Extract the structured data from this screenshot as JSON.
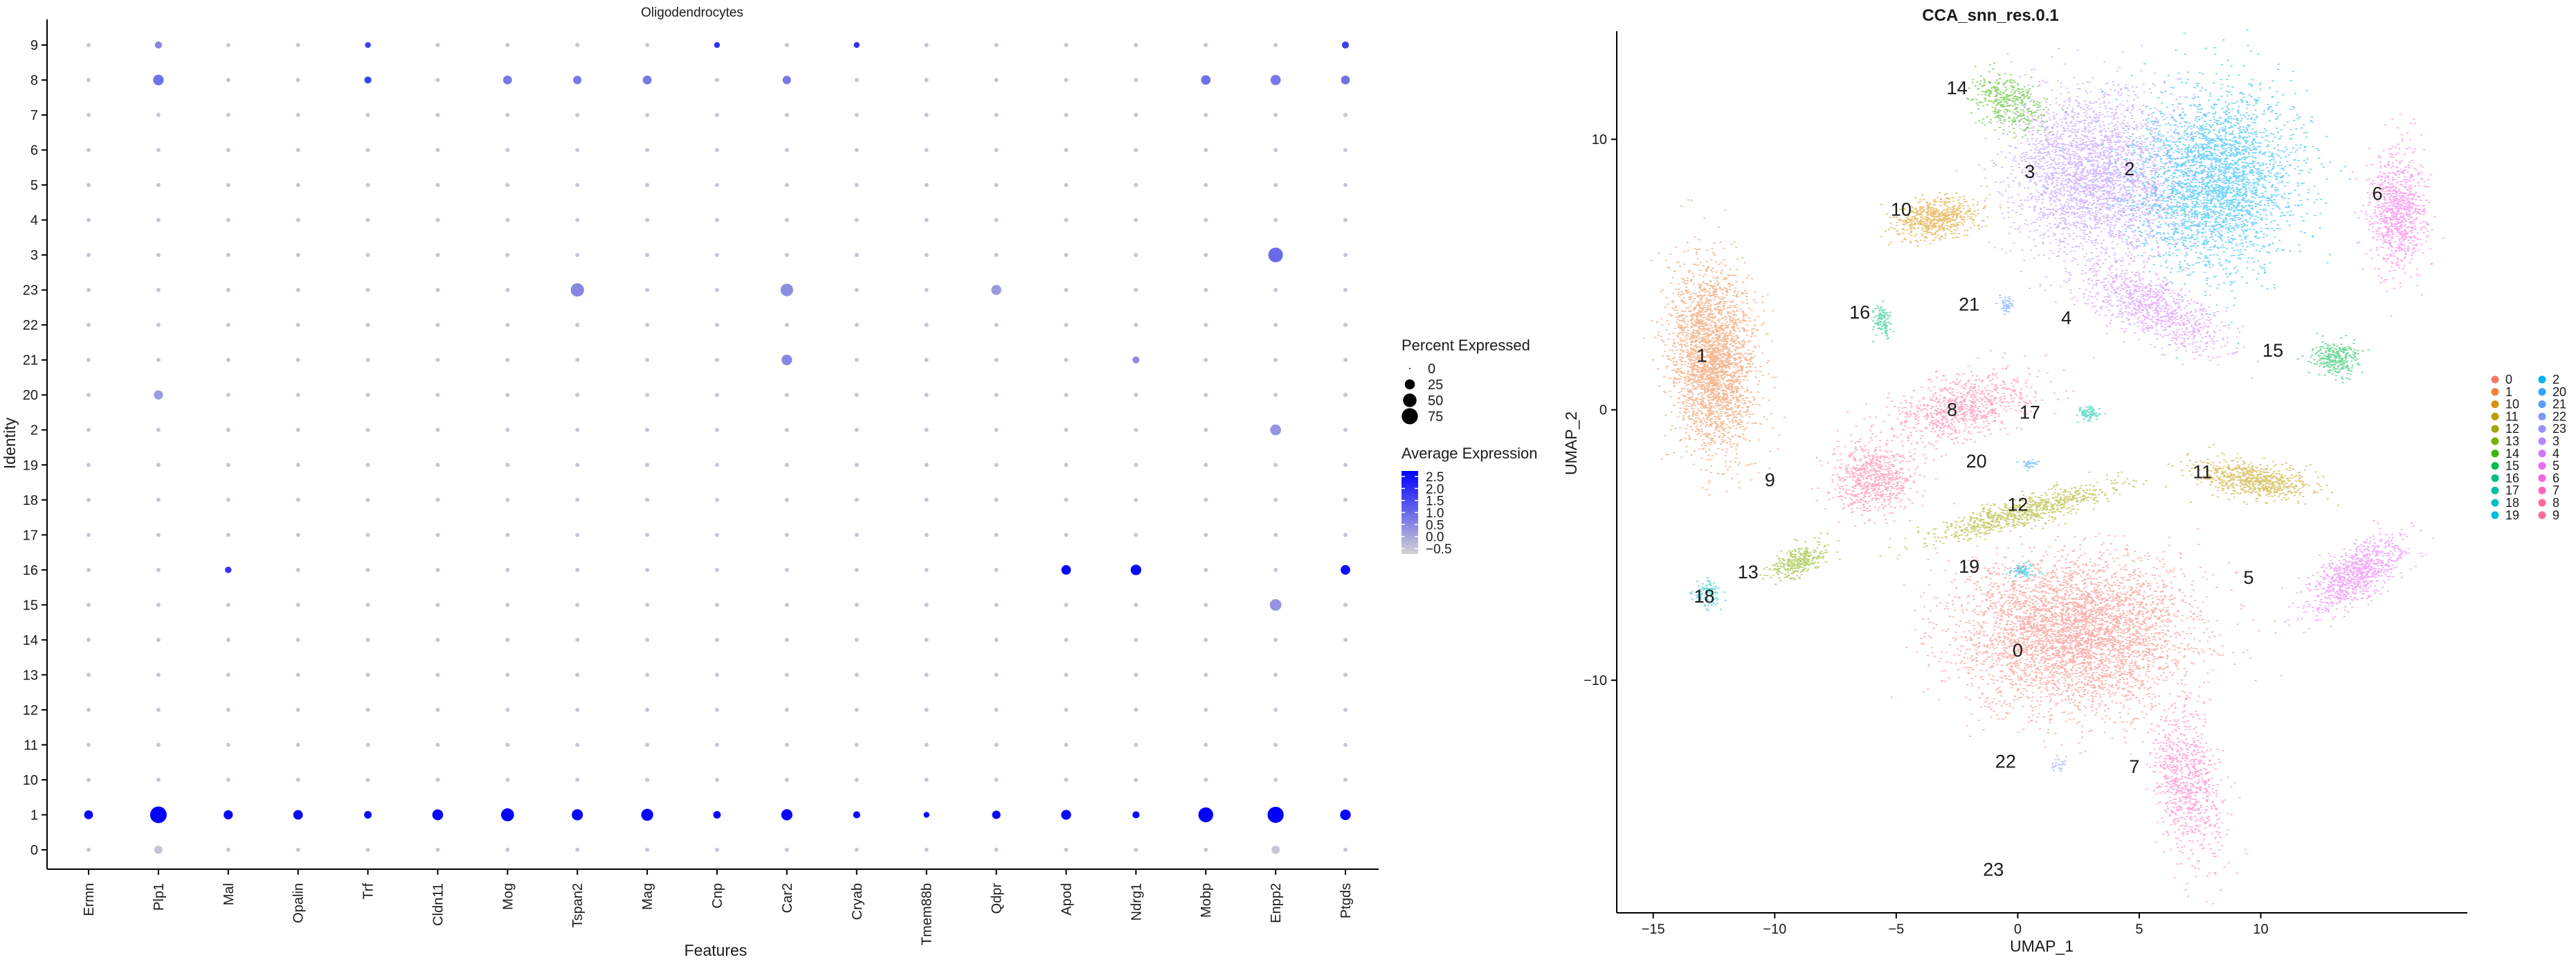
{
  "chart_data": [
    {
      "type": "dot",
      "title": "Oligodendrocytes",
      "xlabel": "Features",
      "ylabel": "Identity",
      "features": [
        "Ermn",
        "Plp1",
        "Mal",
        "Opalin",
        "Trf",
        "Cldn11",
        "Mog",
        "Tspan2",
        "Mag",
        "Cnp",
        "Car2",
        "Cryab",
        "Tmem88b",
        "Qdpr",
        "Apod",
        "Ndrg1",
        "Mobp",
        "Enpp2",
        "Ptgds"
      ],
      "identities": [
        "0",
        "1",
        "10",
        "11",
        "12",
        "13",
        "14",
        "15",
        "16",
        "17",
        "18",
        "19",
        "2",
        "20",
        "21",
        "22",
        "23",
        "3",
        "4",
        "5",
        "6",
        "7",
        "8",
        "9"
      ],
      "size_legend_title": "Percent Expressed",
      "size_legend": [
        0,
        25,
        50,
        75
      ],
      "color_legend_title": "Average Expression",
      "color_legend_ticks": [
        "2.5",
        "2.0",
        "1.5",
        "1.0",
        "0.5",
        "0.0",
        "−0.5"
      ],
      "color_range": [
        -0.5,
        2.5
      ],
      "low_color": "#d3d3d3",
      "high_color": "#0000ff",
      "default_point": {
        "pct": 2,
        "avg": -0.3
      },
      "points": [
        {
          "f": "Ermn",
          "id": "1",
          "pct": 18,
          "avg": 2.4
        },
        {
          "f": "Plp1",
          "id": "1",
          "pct": 80,
          "avg": 2.5
        },
        {
          "f": "Mal",
          "id": "1",
          "pct": 20,
          "avg": 2.4
        },
        {
          "f": "Opalin",
          "id": "1",
          "pct": 22,
          "avg": 2.4
        },
        {
          "f": "Trf",
          "id": "1",
          "pct": 12,
          "avg": 2.4
        },
        {
          "f": "Cldn11",
          "id": "1",
          "pct": 30,
          "avg": 2.4
        },
        {
          "f": "Mog",
          "id": "1",
          "pct": 45,
          "avg": 2.5
        },
        {
          "f": "Tspan2",
          "id": "1",
          "pct": 32,
          "avg": 2.4
        },
        {
          "f": "Mag",
          "id": "1",
          "pct": 38,
          "avg": 2.4
        },
        {
          "f": "Cnp",
          "id": "1",
          "pct": 12,
          "avg": 2.4
        },
        {
          "f": "Car2",
          "id": "1",
          "pct": 32,
          "avg": 2.4
        },
        {
          "f": "Cryab",
          "id": "1",
          "pct": 10,
          "avg": 2.4
        },
        {
          "f": "Tmem88b",
          "id": "1",
          "pct": 6,
          "avg": 2.4
        },
        {
          "f": "Qdpr",
          "id": "1",
          "pct": 16,
          "avg": 2.4
        },
        {
          "f": "Apod",
          "id": "1",
          "pct": 24,
          "avg": 2.4
        },
        {
          "f": "Ndrg1",
          "id": "1",
          "pct": 10,
          "avg": 2.4
        },
        {
          "f": "Mobp",
          "id": "1",
          "pct": 62,
          "avg": 2.5
        },
        {
          "f": "Enpp2",
          "id": "1",
          "pct": 75,
          "avg": 2.5
        },
        {
          "f": "Ptgds",
          "id": "1",
          "pct": 28,
          "avg": 2.4
        },
        {
          "f": "Apod",
          "id": "16",
          "pct": 22,
          "avg": 2.4
        },
        {
          "f": "Ndrg1",
          "id": "16",
          "pct": 28,
          "avg": 2.4
        },
        {
          "f": "Ptgds",
          "id": "16",
          "pct": 22,
          "avg": 2.3
        },
        {
          "f": "Mal",
          "id": "16",
          "pct": 8,
          "avg": 1.8
        },
        {
          "f": "Enpp2",
          "id": "3",
          "pct": 60,
          "avg": 1.0
        },
        {
          "f": "Tspan2",
          "id": "23",
          "pct": 48,
          "avg": 0.6
        },
        {
          "f": "Car2",
          "id": "23",
          "pct": 42,
          "avg": 0.5
        },
        {
          "f": "Qdpr",
          "id": "23",
          "pct": 25,
          "avg": 0.3
        },
        {
          "f": "Car2",
          "id": "21",
          "pct": 28,
          "avg": 0.6
        },
        {
          "f": "Ndrg1",
          "id": "21",
          "pct": 10,
          "avg": 0.5
        },
        {
          "f": "Enpp2",
          "id": "15",
          "pct": 35,
          "avg": 0.4
        },
        {
          "f": "Enpp2",
          "id": "2",
          "pct": 30,
          "avg": 0.4
        },
        {
          "f": "Plp1",
          "id": "8",
          "pct": 28,
          "avg": 0.9
        },
        {
          "f": "Mog",
          "id": "8",
          "pct": 18,
          "avg": 0.8
        },
        {
          "f": "Mag",
          "id": "8",
          "pct": 18,
          "avg": 0.8
        },
        {
          "f": "Tspan2",
          "id": "8",
          "pct": 16,
          "avg": 0.8
        },
        {
          "f": "Car2",
          "id": "8",
          "pct": 16,
          "avg": 0.8
        },
        {
          "f": "Enpp2",
          "id": "8",
          "pct": 26,
          "avg": 0.8
        },
        {
          "f": "Ptgds",
          "id": "8",
          "pct": 18,
          "avg": 0.9
        },
        {
          "f": "Mobp",
          "id": "8",
          "pct": 22,
          "avg": 0.9
        },
        {
          "f": "Trf",
          "id": "8",
          "pct": 10,
          "avg": 1.6
        },
        {
          "f": "Trf",
          "id": "9",
          "pct": 6,
          "avg": 1.6
        },
        {
          "f": "Cnp",
          "id": "9",
          "pct": 6,
          "avg": 1.8
        },
        {
          "f": "Cryab",
          "id": "9",
          "pct": 6,
          "avg": 1.8
        },
        {
          "f": "Ptgds",
          "id": "9",
          "pct": 10,
          "avg": 1.6
        },
        {
          "f": "Plp1",
          "id": "9",
          "pct": 10,
          "avg": 0.6
        },
        {
          "f": "Plp1",
          "id": "20",
          "pct": 20,
          "avg": 0.3
        },
        {
          "f": "Plp1",
          "id": "0",
          "pct": 15,
          "avg": -0.3
        },
        {
          "f": "Enpp2",
          "id": "0",
          "pct": 15,
          "avg": -0.3
        }
      ]
    },
    {
      "type": "scatter",
      "title": "CCA_snn_res.0.1",
      "xlabel": "UMAP_1",
      "ylabel": "UMAP_2",
      "xlim": [
        -16.5,
        18.5
      ],
      "ylim": [
        -18.6,
        14
      ],
      "xticks": [
        -15,
        -10,
        -5,
        0,
        5,
        10
      ],
      "yticks": [
        -10,
        0,
        10
      ],
      "legend_position": "right",
      "legend_columns": [
        [
          "0",
          "1",
          "10",
          "11",
          "12",
          "13",
          "14",
          "15",
          "16",
          "17",
          "18",
          "19"
        ],
        [
          "2",
          "20",
          "21",
          "22",
          "23",
          "3",
          "4",
          "5",
          "6",
          "7",
          "8",
          "9"
        ]
      ],
      "clusters": [
        {
          "label": "0",
          "color": "#F8766D",
          "x": 0,
          "y": -8.9
        },
        {
          "label": "1",
          "color": "#ED813E",
          "x": -13,
          "y": 2
        },
        {
          "label": "10",
          "color": "#D89000",
          "x": -4.8,
          "y": 7.4
        },
        {
          "label": "11",
          "color": "#C09B00",
          "x": 7.6,
          "y": -2.3
        },
        {
          "label": "12",
          "color": "#A3A500",
          "x": 0,
          "y": -3.5
        },
        {
          "label": "13",
          "color": "#7CAE00",
          "x": -11.1,
          "y": -6
        },
        {
          "label": "14",
          "color": "#39B600",
          "x": -2.5,
          "y": 11.9
        },
        {
          "label": "15",
          "color": "#00BB4E",
          "x": 10.5,
          "y": 2.2
        },
        {
          "label": "16",
          "color": "#00BF7D",
          "x": -6.5,
          "y": 3.6
        },
        {
          "label": "17",
          "color": "#00C1A3",
          "x": 0.5,
          "y": -0.1
        },
        {
          "label": "18",
          "color": "#00BFC4",
          "x": -12.9,
          "y": -6.9
        },
        {
          "label": "19",
          "color": "#00BAE0",
          "x": -2,
          "y": -5.8
        },
        {
          "label": "2",
          "color": "#00B0F6",
          "x": 4.6,
          "y": 8.9
        },
        {
          "label": "20",
          "color": "#35A2FF",
          "x": -1.7,
          "y": -1.9
        },
        {
          "label": "21",
          "color": "#5B9BFF",
          "x": -2,
          "y": 3.9
        },
        {
          "label": "22",
          "color": "#7F96FF",
          "x": -0.5,
          "y": -13
        },
        {
          "label": "23",
          "color": "#9590FF",
          "x": -1,
          "y": -17
        },
        {
          "label": "3",
          "color": "#B385FF",
          "x": 0.5,
          "y": 8.8
        },
        {
          "label": "4",
          "color": "#CF78FF",
          "x": 2,
          "y": 3.4
        },
        {
          "label": "5",
          "color": "#E76BF3",
          "x": 9.5,
          "y": -6.2
        },
        {
          "label": "6",
          "color": "#F564E3",
          "x": 14.8,
          "y": 8
        },
        {
          "label": "7",
          "color": "#FF62BC",
          "x": 4.8,
          "y": -13.2
        },
        {
          "label": "8",
          "color": "#FF6A98",
          "x": -2.7,
          "y": 0
        },
        {
          "label": "9",
          "color": "#FF6C91",
          "x": -10.2,
          "y": -2.6
        }
      ]
    }
  ]
}
